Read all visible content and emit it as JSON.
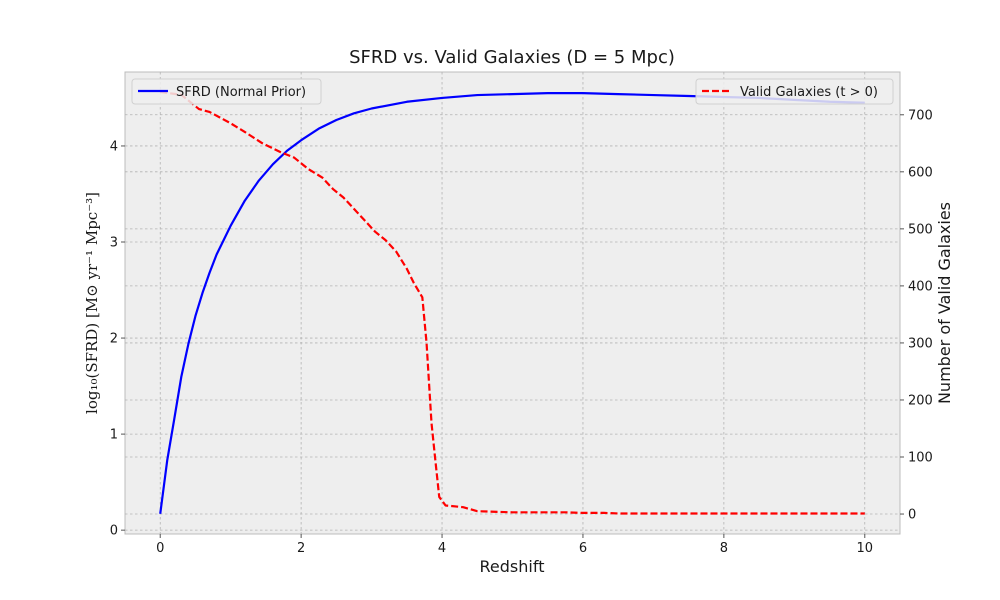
{
  "chart_data": {
    "type": "line",
    "title": "SFRD vs. Valid Galaxies (D = 5 Mpc)",
    "xlabel": "Redshift",
    "ylabel_left": "log₁₀(SFRD) [M⊙ yr⁻¹ Mpc⁻³]",
    "ylabel_right": "Number of Valid Galaxies",
    "xlim": [
      -0.5,
      10.5
    ],
    "ylim_left": [
      -0.04,
      4.77
    ],
    "ylim_right": [
      -35,
      775
    ],
    "x_ticks": [
      0,
      2,
      4,
      6,
      8,
      10
    ],
    "y_ticks_left": [
      0,
      1,
      2,
      3,
      4
    ],
    "y_ticks_right": [
      0,
      100,
      200,
      300,
      400,
      500,
      600,
      700
    ],
    "grid": true,
    "series": [
      {
        "name": "SFRD (Normal Prior)",
        "axis": "left",
        "color": "#0000ff",
        "style": "solid",
        "x": [
          0,
          0.1,
          0.2,
          0.3,
          0.4,
          0.5,
          0.6,
          0.7,
          0.8,
          0.9,
          1.0,
          1.2,
          1.4,
          1.6,
          1.8,
          2.0,
          2.25,
          2.5,
          2.75,
          3.0,
          3.5,
          4.0,
          4.5,
          5.0,
          5.5,
          6.0,
          6.5,
          7.0,
          7.5,
          8.0,
          8.5,
          9.0,
          9.5,
          10.0
        ],
        "values": [
          0.17,
          0.73,
          1.16,
          1.6,
          1.94,
          2.23,
          2.47,
          2.68,
          2.87,
          3.02,
          3.17,
          3.43,
          3.64,
          3.81,
          3.95,
          4.06,
          4.18,
          4.27,
          4.34,
          4.39,
          4.46,
          4.5,
          4.53,
          4.54,
          4.55,
          4.55,
          4.54,
          4.53,
          4.52,
          4.51,
          4.5,
          4.48,
          4.46,
          4.45
        ]
      },
      {
        "name": "Valid Galaxies (t > 0)",
        "axis": "right",
        "color": "#ff0000",
        "style": "dashed",
        "x": [
          0,
          0.3,
          0.4,
          0.55,
          0.7,
          0.85,
          1.0,
          1.2,
          1.45,
          1.7,
          1.9,
          2.1,
          2.3,
          2.45,
          2.6,
          2.75,
          2.9,
          3.05,
          3.2,
          3.35,
          3.5,
          3.6,
          3.72,
          3.78,
          3.85,
          3.9,
          3.96,
          4.05,
          4.3,
          4.5,
          5.0,
          5.5,
          5.75,
          6.0,
          6.3,
          6.5,
          7.0,
          7.5,
          8.0,
          9.0,
          10.0
        ],
        "values": [
          740,
          735,
          725,
          710,
          705,
          695,
          685,
          670,
          650,
          635,
          625,
          605,
          590,
          570,
          555,
          535,
          515,
          495,
          480,
          460,
          430,
          405,
          380,
          300,
          160,
          100,
          30,
          15,
          12,
          5,
          3,
          3,
          3,
          2,
          2,
          1,
          1,
          1,
          1,
          1,
          1
        ]
      }
    ],
    "legend": [
      {
        "label": "SFRD (Normal Prior)",
        "placement": "upper-left"
      },
      {
        "label": "Valid Galaxies (t > 0)",
        "placement": "upper-right"
      }
    ]
  }
}
